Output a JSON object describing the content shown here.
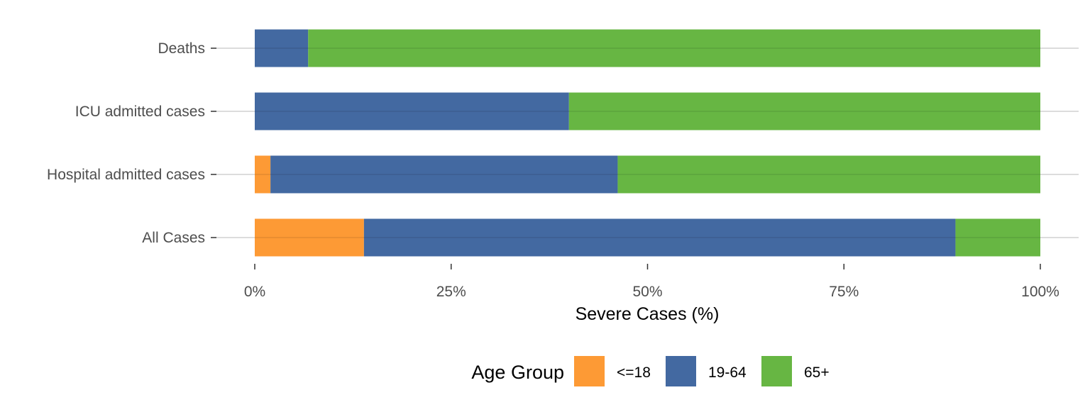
{
  "chart_data": {
    "type": "bar",
    "orientation": "horizontal",
    "stacked": true,
    "categories": [
      "All Cases",
      "Hospital admitted cases",
      "ICU admitted cases",
      "Deaths"
    ],
    "series": [
      {
        "name": "<=18",
        "color": "#fd9a35",
        "values": [
          13.9,
          2.0,
          0.0,
          0.0
        ]
      },
      {
        "name": "19-64",
        "color": "#4369a1",
        "values": [
          75.3,
          44.2,
          40.0,
          6.8
        ]
      },
      {
        "name": "65+",
        "color": "#67b643",
        "values": [
          10.8,
          53.8,
          60.0,
          93.2
        ]
      }
    ],
    "xlabel": "Severe Cases (%)",
    "ylabel": "",
    "xlim": [
      0,
      100
    ],
    "xticks": [
      0,
      25,
      50,
      75,
      100
    ],
    "xtick_labels": [
      "0%",
      "25%",
      "50%",
      "75%",
      "100%"
    ],
    "grid": "horizontal major",
    "legend": {
      "title": "Age Group",
      "position": "bottom"
    }
  }
}
